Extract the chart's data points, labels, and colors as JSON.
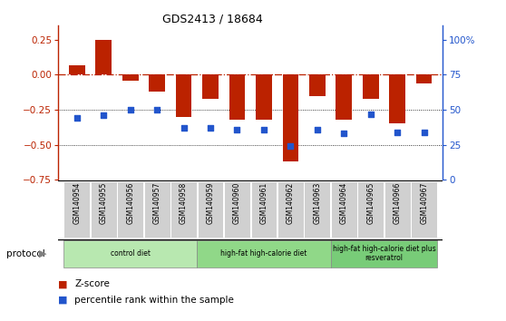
{
  "title": "GDS2413 / 18684",
  "samples": [
    "GSM140954",
    "GSM140955",
    "GSM140956",
    "GSM140957",
    "GSM140958",
    "GSM140959",
    "GSM140960",
    "GSM140961",
    "GSM140962",
    "GSM140963",
    "GSM140964",
    "GSM140965",
    "GSM140966",
    "GSM140967"
  ],
  "z_scores": [
    0.07,
    0.25,
    -0.04,
    -0.12,
    -0.3,
    -0.17,
    -0.32,
    -0.32,
    -0.62,
    -0.15,
    -0.32,
    -0.17,
    -0.35,
    -0.06
  ],
  "percentile_pct": [
    44,
    46,
    50,
    50,
    37,
    37,
    36,
    36,
    24,
    36,
    33,
    47,
    34,
    34
  ],
  "bar_color": "#bb2200",
  "dot_color": "#2255cc",
  "ylim": [
    -0.75,
    0.35
  ],
  "yticks_left": [
    -0.75,
    -0.5,
    -0.25,
    0,
    0.25
  ],
  "yticks_right": [
    0,
    25,
    50,
    75,
    100
  ],
  "groups": [
    {
      "label": "control diet",
      "start": 0,
      "end": 4,
      "color": "#b8e8b0"
    },
    {
      "label": "high-fat high-calorie diet",
      "start": 5,
      "end": 9,
      "color": "#90d888"
    },
    {
      "label": "high-fat high-calorie diet plus\nresveratrol",
      "start": 10,
      "end": 13,
      "color": "#78cc78"
    }
  ],
  "legend_z": "Z-score",
  "legend_pct": "percentile rank within the sample",
  "protocol_label": "protocol"
}
